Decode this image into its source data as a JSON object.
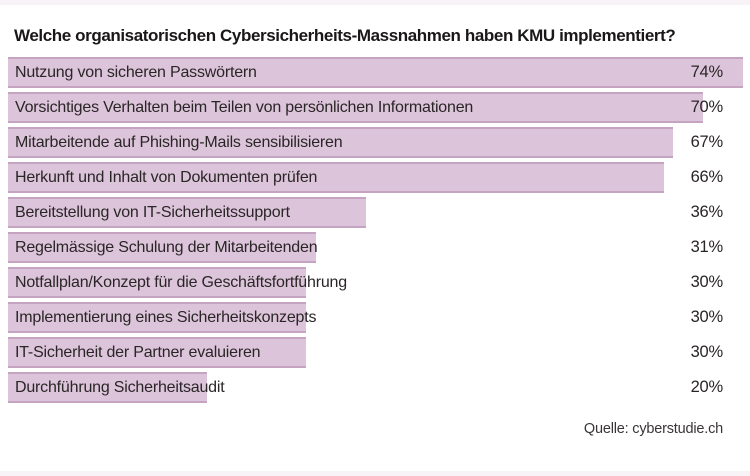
{
  "title": "Welche organisatorischen Cybersicherheits-Massnahmen haben KMU implementiert?",
  "source": "Quelle: cyberstudie.ch",
  "colors": {
    "bar_fill": "#dcc4da",
    "bar_border": "#c5a4c2",
    "edge_strip": "#f8f3f6",
    "text": "#2a2526"
  },
  "chart_data": {
    "type": "bar",
    "orientation": "horizontal",
    "title": "Welche organisatorischen Cybersicherheits-Massnahmen haben KMU implementiert?",
    "categories": [
      "Nutzung von sicheren Passwörtern",
      "Vorsichtiges Verhalten beim Teilen von persönlichen Informationen",
      "Mitarbeitende auf Phishing-Mails sensibilisieren",
      "Herkunft und Inhalt von Dokumenten prüfen",
      "Bereitstellung von IT-Sicherheitssupport",
      "Regelmässige Schulung der Mitarbeitenden",
      "Notfallplan/Konzept für die Geschäftsfortführung",
      "Implementierung eines Sicherheitskonzepts",
      "IT-Sicherheit der Partner evaluieren",
      "Durchführung Sicherheitsaudit"
    ],
    "values": [
      74,
      70,
      67,
      66,
      36,
      31,
      30,
      30,
      30,
      20
    ],
    "value_labels": [
      "74%",
      "70%",
      "67%",
      "66%",
      "36%",
      "31%",
      "30%",
      "30%",
      "30%",
      "20%"
    ],
    "value_suffix": "%",
    "xlim": [
      0,
      74
    ],
    "grid": false,
    "legend": "none",
    "source": "Quelle: cyberstudie.ch"
  }
}
